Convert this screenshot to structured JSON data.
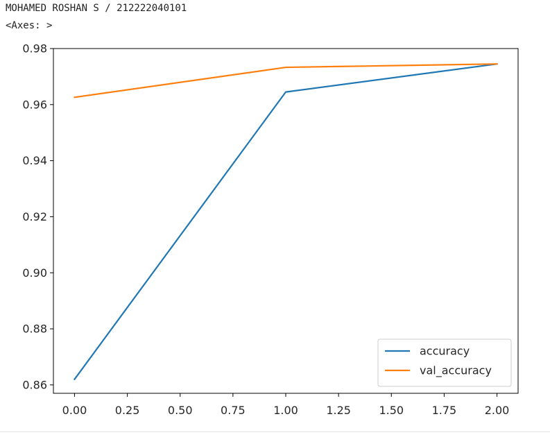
{
  "output": {
    "header_line": "MOHAMED ROSHAN S / 212222040101",
    "repr_line": "<Axes: >"
  },
  "chart_data": {
    "type": "line",
    "x": [
      0,
      1,
      2
    ],
    "series": [
      {
        "name": "accuracy",
        "color": "#1f77b4",
        "values": [
          0.862,
          0.9645,
          0.9745
        ]
      },
      {
        "name": "val_accuracy",
        "color": "#ff7f0e",
        "values": [
          0.9626,
          0.9733,
          0.9745
        ]
      }
    ],
    "xlim": [
      -0.1,
      2.1
    ],
    "ylim": [
      0.857,
      0.98
    ],
    "x_ticks": [
      0.0,
      0.25,
      0.5,
      0.75,
      1.0,
      1.25,
      1.5,
      1.75,
      2.0
    ],
    "x_tick_labels": [
      "0.00",
      "0.25",
      "0.50",
      "0.75",
      "1.00",
      "1.25",
      "1.50",
      "1.75",
      "2.00"
    ],
    "y_ticks": [
      0.86,
      0.88,
      0.9,
      0.92,
      0.94,
      0.96,
      0.98
    ],
    "y_tick_labels": [
      "0.86",
      "0.88",
      "0.90",
      "0.92",
      "0.94",
      "0.96",
      "0.98"
    ],
    "title": "",
    "xlabel": "",
    "ylabel": "",
    "grid": false,
    "legend_position": "lower-right"
  }
}
